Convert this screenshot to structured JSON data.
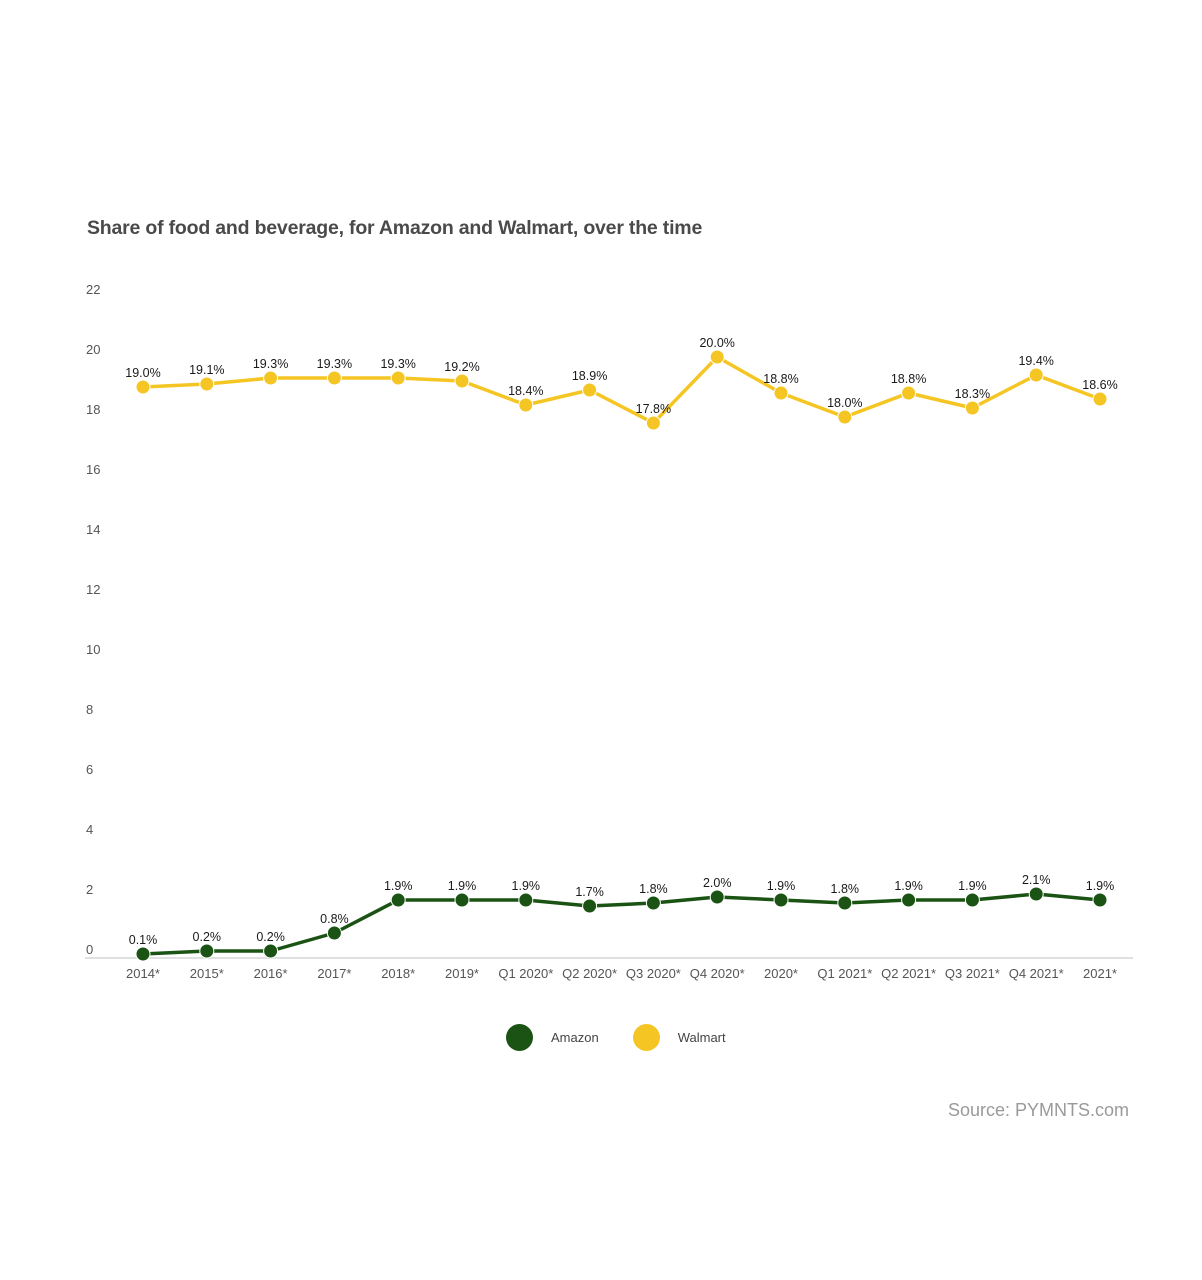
{
  "chart_data": {
    "type": "line",
    "title": "Share of food and beverage, for Amazon and Walmart, over the time",
    "xlabel": "",
    "ylabel": "",
    "categories": [
      "2014*",
      "2015*",
      "2016*",
      "2017*",
      "2018*",
      "2019*",
      "Q1 2020*",
      "Q2 2020*",
      "Q3 2020*",
      "Q4 2020*",
      "2020*",
      "Q1 2021*",
      "Q2 2021*",
      "Q3 2021*",
      "Q4 2021*",
      "2021*"
    ],
    "ylim": [
      0,
      22
    ],
    "yticks": [
      0,
      2,
      4,
      6,
      8,
      10,
      12,
      14,
      16,
      18,
      20,
      22
    ],
    "grid": false,
    "legend_position": "bottom-center",
    "series": [
      {
        "name": "Amazon",
        "color": "#1b5314",
        "values": [
          0.1,
          0.2,
          0.2,
          0.8,
          1.9,
          1.9,
          1.9,
          1.7,
          1.8,
          2.0,
          1.9,
          1.8,
          1.9,
          1.9,
          2.1,
          1.9
        ],
        "labels": [
          "0.1%",
          "0.2%",
          "0.2%",
          "0.8%",
          "1.9%",
          "1.9%",
          "1.9%",
          "1.7%",
          "1.8%",
          "2.0%",
          "1.9%",
          "1.8%",
          "1.9%",
          "1.9%",
          "2.1%",
          "1.9%"
        ]
      },
      {
        "name": "Walmart",
        "color": "#f5c623",
        "values": [
          19.0,
          19.1,
          19.3,
          19.3,
          19.3,
          19.2,
          18.4,
          18.9,
          17.8,
          20.0,
          18.8,
          18.0,
          18.8,
          18.3,
          19.4,
          18.6
        ],
        "labels": [
          "19.0%",
          "19.1%",
          "19.3%",
          "19.3%",
          "19.3%",
          "19.2%",
          "18.4%",
          "18.9%",
          "17.8%",
          "20.0%",
          "18.8%",
          "18.0%",
          "18.8%",
          "18.3%",
          "19.4%",
          "18.6%"
        ]
      }
    ],
    "source": "Source: PYMNTS.com"
  }
}
